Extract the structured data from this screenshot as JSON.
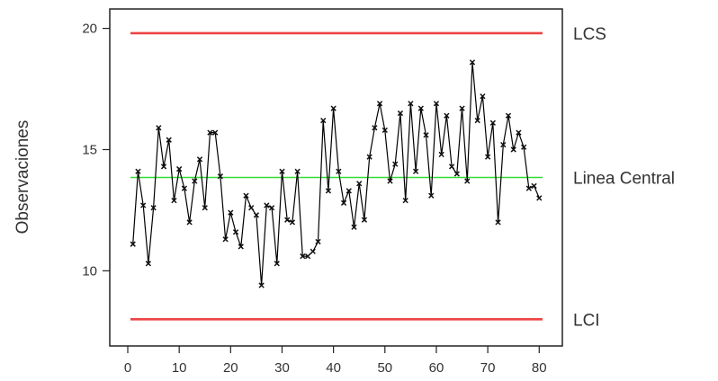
{
  "chart_data": {
    "type": "line",
    "ylabel": "Observaciones",
    "xlabel": "",
    "xlim": [
      -3.5,
      84.5
    ],
    "ylim": [
      6.9,
      20.8
    ],
    "xticks": [
      0,
      10,
      20,
      30,
      40,
      50,
      60,
      70,
      80
    ],
    "yticks": [
      10,
      15,
      20
    ],
    "grid": false,
    "series": [
      {
        "x": [
          1,
          2,
          3,
          4,
          5,
          6,
          7,
          8,
          9,
          10,
          11,
          12,
          13,
          14,
          15,
          16,
          17,
          18,
          19,
          20,
          21,
          22,
          23,
          24,
          25,
          26,
          27,
          28,
          29,
          30,
          31,
          32,
          33,
          34,
          35,
          36,
          37,
          38,
          39,
          40,
          41,
          42,
          43,
          44,
          45,
          46,
          47,
          48,
          49,
          50,
          51,
          52,
          53,
          54,
          55,
          56,
          57,
          58,
          59,
          60,
          61,
          62,
          63,
          64,
          65,
          66,
          67,
          68,
          69,
          70,
          71,
          72,
          73,
          74,
          75,
          76,
          77,
          78,
          79,
          80
        ],
        "values": [
          11.1,
          14.1,
          12.7,
          10.3,
          12.6,
          15.9,
          14.3,
          15.4,
          12.9,
          14.2,
          13.4,
          12.0,
          13.7,
          14.6,
          12.6,
          15.7,
          15.7,
          13.9,
          11.3,
          12.4,
          11.6,
          11.0,
          13.1,
          12.6,
          12.3,
          9.4,
          12.7,
          12.6,
          10.3,
          14.1,
          12.1,
          12.0,
          14.1,
          10.6,
          10.6,
          10.8,
          11.2,
          16.2,
          13.3,
          16.7,
          14.1,
          12.8,
          13.3,
          11.8,
          13.6,
          12.1,
          14.7,
          15.9,
          16.9,
          15.8,
          13.7,
          14.4,
          16.5,
          12.9,
          16.9,
          14.1,
          16.7,
          15.6,
          13.1,
          16.9,
          14.8,
          16.4,
          14.3,
          14.0,
          16.7,
          13.7,
          18.6,
          16.2,
          17.2,
          14.7,
          16.1,
          12.0,
          15.2,
          16.4,
          15.0,
          15.7,
          15.1,
          13.4,
          13.5,
          13.0
        ],
        "color": "#000000"
      }
    ],
    "reference_lines": [
      {
        "label": "LCS",
        "value": 19.8,
        "color": "#ee4444"
      },
      {
        "label": "Linea Central",
        "value": 13.85,
        "color": "#33dd33"
      },
      {
        "label": "LCI",
        "value": 8.0,
        "color": "#ee4444"
      }
    ]
  }
}
